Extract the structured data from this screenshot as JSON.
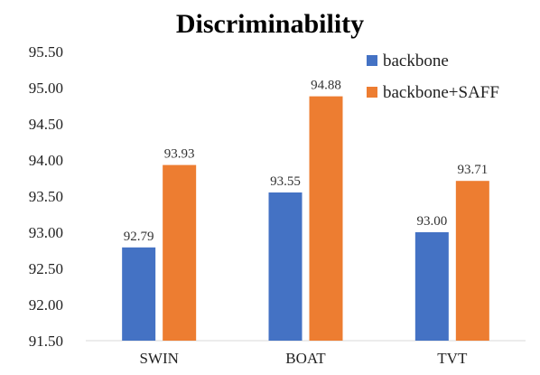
{
  "chart_data": {
    "type": "bar",
    "title": "Discriminability",
    "categories": [
      "SWIN",
      "BOAT",
      "TVT"
    ],
    "series": [
      {
        "name": "backbone",
        "color": "#4472C4",
        "values": [
          92.79,
          93.55,
          93.0
        ]
      },
      {
        "name": "backbone+SAFF",
        "color": "#ED7D31",
        "values": [
          93.93,
          94.88,
          93.71
        ]
      }
    ],
    "value_labels": [
      [
        "92.79",
        "93.55",
        "93.00"
      ],
      [
        "93.93",
        "94.88",
        "93.71"
      ]
    ],
    "ylim": [
      91.5,
      95.5
    ],
    "yticks": [
      "91.50",
      "92.00",
      "92.50",
      "93.00",
      "93.50",
      "94.00",
      "94.50",
      "95.00",
      "95.50"
    ],
    "xlabel": "",
    "ylabel": "",
    "grid": false,
    "legend_position": "top-right"
  }
}
